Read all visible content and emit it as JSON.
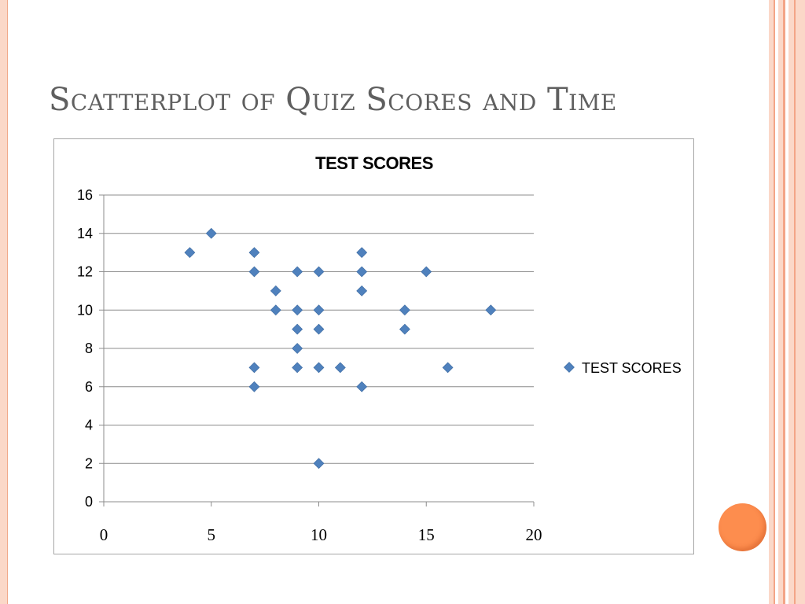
{
  "slide": {
    "title": "Scatterplot of Quiz Scores and Time"
  },
  "colors": {
    "marker": "#4f81bd",
    "frame": "#f5b49a",
    "accent_orb": "#fd8d4e",
    "title_text": "#5f5f5f"
  },
  "chart_data": {
    "type": "scatter",
    "title": "TEST SCORES",
    "xlabel": "",
    "ylabel": "",
    "xlim": [
      0,
      20
    ],
    "ylim": [
      0,
      16
    ],
    "x_ticks": [
      0,
      5,
      10,
      15,
      20
    ],
    "y_ticks": [
      0,
      2,
      4,
      6,
      8,
      10,
      12,
      14,
      16
    ],
    "grid": "horizontal",
    "legend_position": "right",
    "series": [
      {
        "name": "TEST SCORES",
        "marker": "diamond",
        "points": [
          [
            4,
            13
          ],
          [
            5,
            14
          ],
          [
            7,
            13
          ],
          [
            7,
            12
          ],
          [
            7,
            7
          ],
          [
            7,
            6
          ],
          [
            8,
            11
          ],
          [
            8,
            10
          ],
          [
            9,
            12
          ],
          [
            9,
            10
          ],
          [
            9,
            9
          ],
          [
            9,
            8
          ],
          [
            9,
            7
          ],
          [
            10,
            12
          ],
          [
            10,
            10
          ],
          [
            10,
            9
          ],
          [
            10,
            7
          ],
          [
            10,
            2
          ],
          [
            11,
            7
          ],
          [
            12,
            13
          ],
          [
            12,
            12
          ],
          [
            12,
            11
          ],
          [
            12,
            6
          ],
          [
            14,
            10
          ],
          [
            14,
            9
          ],
          [
            15,
            12
          ],
          [
            16,
            7
          ],
          [
            18,
            10
          ]
        ]
      }
    ]
  }
}
